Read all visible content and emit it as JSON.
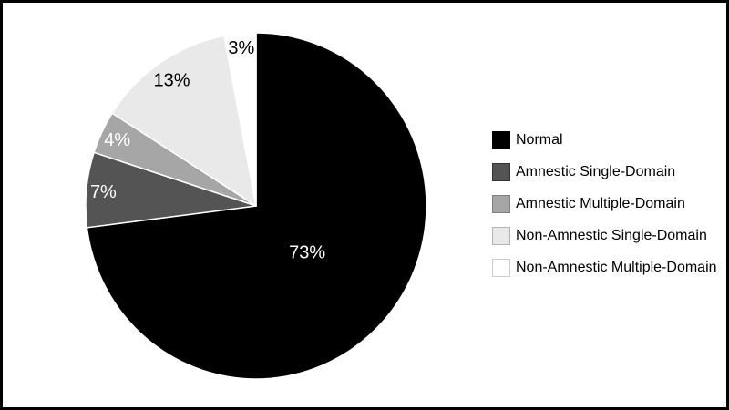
{
  "figure": {
    "background": "#ffffff",
    "frame_color": "#000000"
  },
  "chart_data": {
    "type": "pie",
    "title": "",
    "categories": [
      "Normal",
      "Amnestic Single-Domain",
      "Amnestic Multiple-Domain",
      "Non-Amnestic Single-Domain",
      "Non-Amnestic Multiple-Domain"
    ],
    "values": [
      73,
      7,
      4,
      13,
      3
    ],
    "slices": [
      {
        "label": "Normal",
        "value": 73,
        "display": "73%",
        "color": "#000000",
        "swatch_border": "#000000",
        "label_color": "#ffffff",
        "label_r_frac": 0.4
      },
      {
        "label": "Amnestic Single-Domain",
        "value": 7,
        "display": "7%",
        "color": "#545454",
        "swatch_border": "#333333",
        "label_color": "#ffffff",
        "label_r_frac": 0.9
      },
      {
        "label": "Amnestic Multiple-Domain",
        "value": 4,
        "display": "4%",
        "color": "#a6a6a6",
        "swatch_border": "#808080",
        "label_color": "#ffffff",
        "label_r_frac": 0.9
      },
      {
        "label": "Non-Amnestic Single-Domain",
        "value": 13,
        "display": "13%",
        "color": "#e9e9e9",
        "swatch_border": "#b3b3b3",
        "label_color": "#000000",
        "label_r_frac": 0.88
      },
      {
        "label": "Non-Amnestic Multiple-Domain",
        "value": 3,
        "display": "3%",
        "color": "#ffffff",
        "swatch_border": "#cccccc",
        "label_color": "#000000",
        "label_r_frac": 0.92
      }
    ],
    "start_angle_deg": 0,
    "direction": "clockwise",
    "legend_position": "right",
    "separator_color": "#ffffff"
  }
}
